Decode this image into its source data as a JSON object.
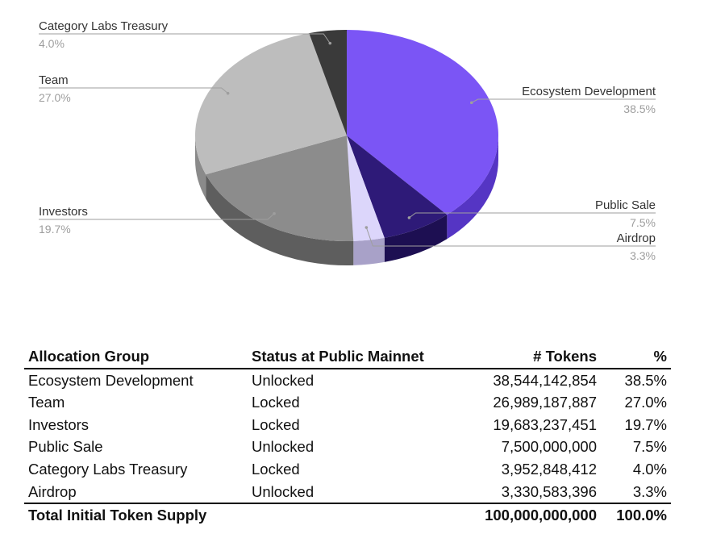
{
  "chart_data": {
    "type": "pie",
    "title": "",
    "slices": [
      {
        "label": "Ecosystem Development",
        "value": 38.5,
        "pct_label": "38.5%",
        "color": "#7b55f5",
        "side": "#5535c4"
      },
      {
        "label": "Public Sale",
        "value": 7.5,
        "pct_label": "7.5%",
        "color": "#2e1a78",
        "side": "#1d0f52"
      },
      {
        "label": "Airdrop",
        "value": 3.3,
        "pct_label": "3.3%",
        "color": "#dcd6fb",
        "side": "#a8a1c8"
      },
      {
        "label": "Investors",
        "value": 19.7,
        "pct_label": "19.7%",
        "color": "#8c8c8c",
        "side": "#5e5e5e"
      },
      {
        "label": "Team",
        "value": 27.0,
        "pct_label": "27.0%",
        "color": "#bdbdbd",
        "side": "#8a8a8a"
      },
      {
        "label": "Category Labs Treasury",
        "value": 4.0,
        "pct_label": "4.0%",
        "color": "#3a3a3a",
        "side": "#222222"
      }
    ]
  },
  "table": {
    "headers": [
      "Allocation Group",
      "Status at Public Mainnet",
      "# Tokens",
      "%"
    ],
    "rows": [
      [
        "Ecosystem Development",
        "Unlocked",
        "38,544,142,854",
        "38.5%"
      ],
      [
        "Team",
        "Locked",
        "26,989,187,887",
        "27.0%"
      ],
      [
        "Investors",
        "Locked",
        "19,683,237,451",
        "19.7%"
      ],
      [
        "Public Sale",
        "Unlocked",
        "7,500,000,000",
        "7.5%"
      ],
      [
        "Category Labs Treasury",
        "Locked",
        "3,952,848,412",
        "4.0%"
      ],
      [
        "Airdrop",
        "Unlocked",
        "3,330,583,396",
        "3.3%"
      ]
    ],
    "total": [
      "Total Initial Token Supply",
      "",
      "100,000,000,000",
      "100.0%"
    ]
  }
}
